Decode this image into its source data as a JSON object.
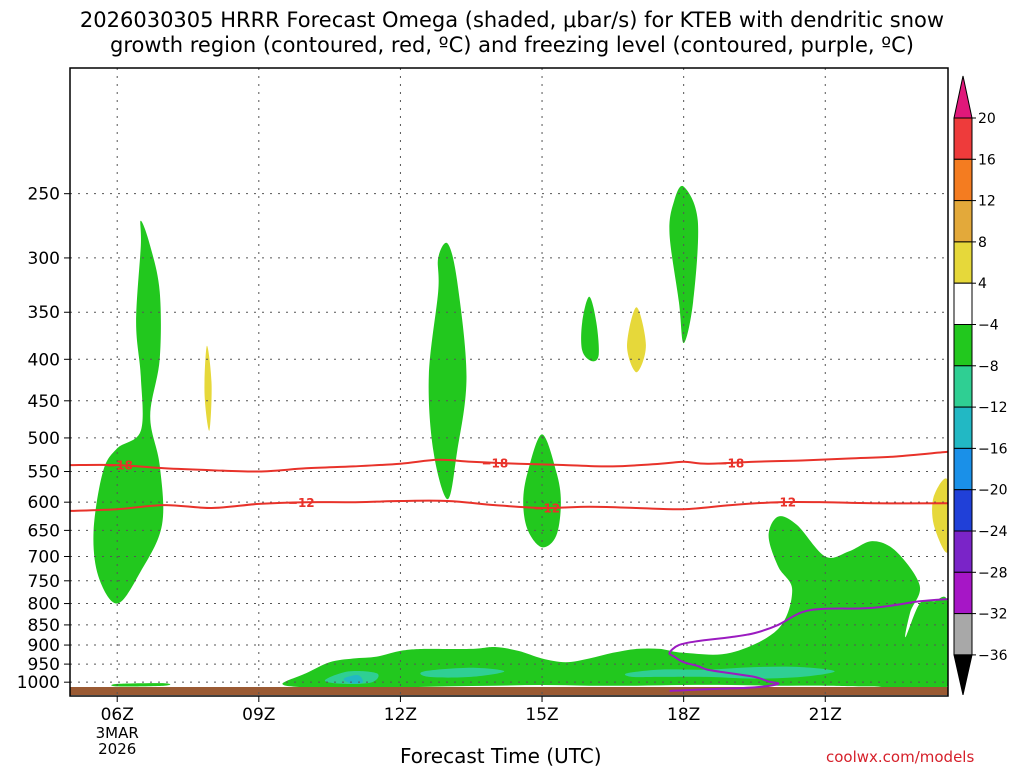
{
  "title": {
    "line1": "2026030305 HRRR Forecast Omega (shaded, μbar/s) for KTEB with dendritic snow",
    "line2": "growth region (contoured, red, ºC) and freezing level (contoured, purple, ºC)"
  },
  "credit": "coolwx.com/models",
  "chart_data": {
    "type": "heatmap",
    "title": "2026030305 HRRR Forecast Omega (shaded, μbar/s) for KTEB with dendritic snow growth region (contoured, red, ºC) and freezing level (contoured, purple, ºC)",
    "xlabel": "Forecast Time (UTC)",
    "ylabel": "",
    "x_range_hours": [
      5.0,
      23.6
    ],
    "x_ticks": [
      {
        "hour": 6,
        "label": "06Z",
        "sub": [
          "3MAR",
          "2026"
        ]
      },
      {
        "hour": 9,
        "label": "09Z"
      },
      {
        "hour": 12,
        "label": "12Z"
      },
      {
        "hour": 15,
        "label": "15Z"
      },
      {
        "hour": 18,
        "label": "18Z"
      },
      {
        "hour": 21,
        "label": "21Z"
      }
    ],
    "y_axis": "pressure (mb), log scale",
    "y_range_mb": [
      1040,
      175
    ],
    "y_ticks": [
      250,
      300,
      350,
      400,
      450,
      500,
      550,
      600,
      650,
      700,
      750,
      800,
      850,
      900,
      950,
      1000
    ],
    "colorbar": {
      "labels": [
        "20",
        "16",
        "12",
        "8",
        "4",
        "−4",
        "−8",
        "−12",
        "−16",
        "−20",
        "−24",
        "−28",
        "−32",
        "−36"
      ],
      "colors": [
        "#ee3b3b",
        "#f47c20",
        "#e3a93a",
        "#e6d83a",
        "#ffffff",
        "#22c81e",
        "#2fcf93",
        "#22b8c4",
        "#1a90e8",
        "#2040d8",
        "#7a24c8",
        "#a616c6",
        "#a8a8a8"
      ],
      "top_color": "#e0187a",
      "bottom_color": "#000000"
    },
    "omega_regions": [
      {
        "color": "#22c81e",
        "points": [
          [
            6.5,
            270
          ],
          [
            6.7,
            290
          ],
          [
            6.9,
            330
          ],
          [
            6.9,
            400
          ],
          [
            6.7,
            470
          ],
          [
            6.9,
            540
          ],
          [
            6.95,
            640
          ],
          [
            6.5,
            730
          ],
          [
            6.0,
            800
          ],
          [
            5.6,
            740
          ],
          [
            5.5,
            650
          ],
          [
            5.7,
            550
          ],
          [
            6.0,
            515
          ],
          [
            6.5,
            490
          ],
          [
            6.5,
            420
          ],
          [
            6.4,
            360
          ],
          [
            6.5,
            290
          ]
        ]
      },
      {
        "color": "#e6d83a",
        "points": [
          [
            7.9,
            385
          ],
          [
            8.0,
            430
          ],
          [
            7.95,
            490
          ],
          [
            7.85,
            440
          ]
        ]
      },
      {
        "color": "#22c81e",
        "points": [
          [
            13.0,
            288
          ],
          [
            13.2,
            320
          ],
          [
            13.4,
            420
          ],
          [
            13.2,
            520
          ],
          [
            13.0,
            595
          ],
          [
            12.7,
            520
          ],
          [
            12.6,
            420
          ],
          [
            12.8,
            330
          ],
          [
            12.8,
            300
          ]
        ]
      },
      {
        "color": "#22c81e",
        "points": [
          [
            15.0,
            495
          ],
          [
            15.3,
            550
          ],
          [
            15.4,
            600
          ],
          [
            15.3,
            660
          ],
          [
            15.0,
            682
          ],
          [
            14.7,
            650
          ],
          [
            14.6,
            600
          ],
          [
            14.7,
            550
          ]
        ]
      },
      {
        "color": "#22c81e",
        "points": [
          [
            16.0,
            335
          ],
          [
            16.15,
            360
          ],
          [
            16.2,
            395
          ],
          [
            16.05,
            402
          ],
          [
            15.85,
            390
          ],
          [
            15.85,
            360
          ]
        ]
      },
      {
        "color": "#e6d83a",
        "points": [
          [
            17.0,
            345
          ],
          [
            17.2,
            385
          ],
          [
            17.0,
            415
          ],
          [
            16.8,
            385
          ]
        ]
      },
      {
        "color": "#22c81e",
        "points": [
          [
            18.0,
            245
          ],
          [
            18.3,
            270
          ],
          [
            18.2,
            340
          ],
          [
            18.0,
            382
          ],
          [
            17.9,
            340
          ],
          [
            17.7,
            280
          ],
          [
            17.8,
            255
          ]
        ]
      },
      {
        "color": "#22c81e",
        "points": [
          [
            9.5,
            1005
          ],
          [
            10.0,
            975
          ],
          [
            10.5,
            945
          ],
          [
            11.0,
            935
          ],
          [
            11.5,
            930
          ],
          [
            12.0,
            915
          ],
          [
            12.5,
            910
          ],
          [
            13.5,
            910
          ],
          [
            14.0,
            905
          ],
          [
            14.5,
            915
          ],
          [
            15.0,
            935
          ],
          [
            15.5,
            945
          ],
          [
            16.0,
            935
          ],
          [
            16.5,
            920
          ],
          [
            17.0,
            910
          ],
          [
            17.5,
            910
          ],
          [
            18.0,
            920
          ],
          [
            19.0,
            920
          ],
          [
            20.0,
            860
          ],
          [
            20.3,
            770
          ],
          [
            20.0,
            720
          ],
          [
            19.8,
            660
          ],
          [
            20.0,
            625
          ],
          [
            20.4,
            640
          ],
          [
            21.0,
            700
          ],
          [
            21.5,
            690
          ],
          [
            22.0,
            670
          ],
          [
            22.5,
            690
          ],
          [
            23.0,
            760
          ],
          [
            22.8,
            820
          ],
          [
            22.7,
            880
          ],
          [
            23.0,
            800
          ],
          [
            23.3,
            795
          ],
          [
            23.6,
            800
          ],
          [
            23.6,
            1010
          ],
          [
            22.0,
            1012
          ],
          [
            21.0,
            1010
          ],
          [
            20.0,
            1010
          ],
          [
            19.0,
            1008
          ],
          [
            18.0,
            1008
          ],
          [
            17.0,
            1010
          ],
          [
            16.0,
            1010
          ],
          [
            15.0,
            1008
          ],
          [
            14.0,
            1010
          ],
          [
            13.0,
            1012
          ],
          [
            12.0,
            1015
          ],
          [
            11.0,
            1018
          ],
          [
            10.0,
            1015
          ]
        ]
      },
      {
        "color": "#2fcf93",
        "points": [
          [
            10.4,
            995
          ],
          [
            10.9,
            970
          ],
          [
            11.5,
            975
          ],
          [
            11.4,
            1000
          ],
          [
            10.8,
            1005
          ]
        ]
      },
      {
        "color": "#22b8c4",
        "points": [
          [
            10.8,
            990
          ],
          [
            11.1,
            980
          ],
          [
            11.2,
            1000
          ],
          [
            10.95,
            1003
          ]
        ]
      },
      {
        "color": "#2fcf93",
        "points": [
          [
            12.5,
            970
          ],
          [
            13.5,
            960
          ],
          [
            14.2,
            970
          ],
          [
            13.5,
            985
          ],
          [
            12.6,
            985
          ]
        ]
      },
      {
        "color": "#2fcf93",
        "points": [
          [
            16.8,
            975
          ],
          [
            17.5,
            965
          ],
          [
            18.5,
            965
          ],
          [
            19.5,
            958
          ],
          [
            20.5,
            958
          ],
          [
            21.2,
            970
          ],
          [
            20.5,
            985
          ],
          [
            19.5,
            990
          ],
          [
            18.5,
            985
          ],
          [
            17.5,
            985
          ],
          [
            16.9,
            985
          ]
        ]
      },
      {
        "color": "#e6d83a",
        "points": [
          [
            23.6,
            565
          ],
          [
            23.3,
            590
          ],
          [
            23.3,
            640
          ],
          [
            23.6,
            690
          ]
        ]
      },
      {
        "color": "#22c81e",
        "points": [
          [
            6.0,
            1005
          ],
          [
            7.0,
            1003
          ],
          [
            7.0,
            1010
          ],
          [
            6.0,
            1012
          ]
        ]
      }
    ],
    "dendritic_contours": [
      {
        "label": "−18",
        "color": "#e8322a",
        "points": [
          [
            5.0,
            540
          ],
          [
            6.0,
            540
          ],
          [
            7.0,
            545
          ],
          [
            8.0,
            548
          ],
          [
            9.0,
            550
          ],
          [
            10.0,
            545
          ],
          [
            11.0,
            542
          ],
          [
            12.0,
            538
          ],
          [
            12.8,
            532
          ],
          [
            13.5,
            535
          ],
          [
            14.5,
            538
          ],
          [
            15.5,
            540
          ],
          [
            16.5,
            542
          ],
          [
            17.5,
            538
          ],
          [
            18.0,
            535
          ],
          [
            18.5,
            538
          ],
          [
            19.5,
            535
          ],
          [
            20.5,
            533
          ],
          [
            21.5,
            530
          ],
          [
            22.5,
            527
          ],
          [
            23.6,
            520
          ]
        ],
        "label_hours": [
          6.05,
          14.0,
          19.0
        ]
      },
      {
        "label": "−12",
        "color": "#e8322a",
        "points": [
          [
            5.0,
            615
          ],
          [
            6.0,
            612
          ],
          [
            7.0,
            605
          ],
          [
            8.0,
            610
          ],
          [
            9.0,
            603
          ],
          [
            10.0,
            600
          ],
          [
            11.0,
            600
          ],
          [
            12.0,
            598
          ],
          [
            13.0,
            598
          ],
          [
            14.0,
            605
          ],
          [
            15.0,
            610
          ],
          [
            16.0,
            608
          ],
          [
            17.0,
            610
          ],
          [
            18.0,
            612
          ],
          [
            19.0,
            605
          ],
          [
            20.0,
            600
          ],
          [
            21.0,
            600
          ],
          [
            22.0,
            602
          ],
          [
            23.6,
            602
          ]
        ],
        "label_hours": [
          9.9,
          15.1,
          20.1
        ]
      }
    ],
    "freezing_level": {
      "color": "#9b1bc0",
      "points": [
        [
          17.7,
          1025
        ],
        [
          18.5,
          1020
        ],
        [
          19.5,
          1015
        ],
        [
          20.0,
          1005
        ],
        [
          19.8,
          998
        ],
        [
          19.5,
          985
        ],
        [
          19.0,
          975
        ],
        [
          18.5,
          965
        ],
        [
          18.3,
          955
        ],
        [
          18.0,
          945
        ],
        [
          17.8,
          930
        ],
        [
          17.7,
          920
        ],
        [
          17.9,
          900
        ],
        [
          18.3,
          890
        ],
        [
          19.0,
          880
        ],
        [
          19.5,
          870
        ],
        [
          20.0,
          850
        ],
        [
          20.5,
          820
        ],
        [
          21.0,
          812
        ],
        [
          22.0,
          810
        ],
        [
          23.0,
          795
        ],
        [
          23.6,
          790
        ]
      ]
    },
    "ground_band_hours": [
      5.0,
      23.6
    ]
  }
}
